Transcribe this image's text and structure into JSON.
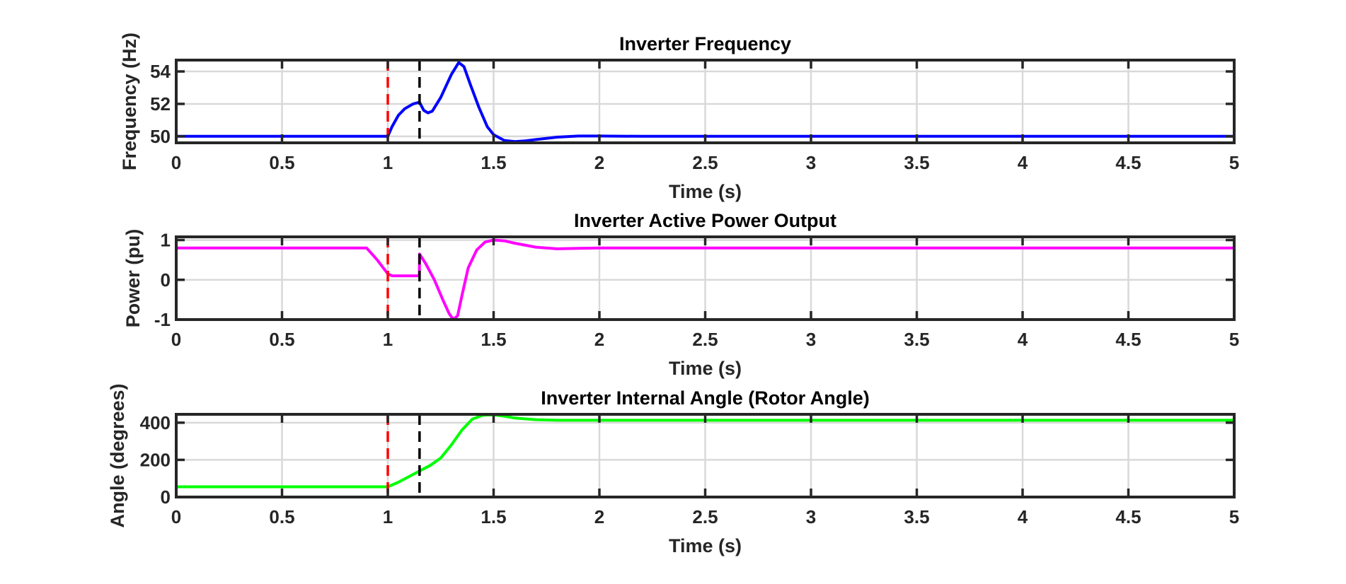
{
  "chart_data": [
    {
      "type": "line",
      "title": "Inverter Frequency",
      "xlabel": "Time (s)",
      "ylabel": "Frequency (Hz)",
      "xlim": [
        0,
        5
      ],
      "ylim": [
        49.6,
        54.7
      ],
      "xticks": [
        0,
        0.5,
        1,
        1.5,
        2,
        2.5,
        3,
        3.5,
        4,
        4.5,
        5
      ],
      "xtick_labels": [
        "0",
        "0.5",
        "1",
        "1.5",
        "2",
        "2.5",
        "3",
        "3.5",
        "4",
        "4.5",
        "5"
      ],
      "yticks": [
        50,
        52,
        54
      ],
      "ytick_labels": [
        "50",
        "52",
        "54"
      ],
      "grid": true,
      "vlines": [
        {
          "x": 1.0,
          "color": "#ff0000",
          "style": "dashed"
        },
        {
          "x": 1.15,
          "color": "#000000",
          "style": "dashed"
        }
      ],
      "series": [
        {
          "color": "#0000ff",
          "x": [
            0,
            0.5,
            1.0,
            1.02,
            1.05,
            1.08,
            1.12,
            1.15,
            1.17,
            1.19,
            1.21,
            1.25,
            1.3,
            1.335,
            1.36,
            1.39,
            1.43,
            1.47,
            1.5,
            1.55,
            1.6,
            1.65,
            1.7,
            1.8,
            1.9,
            2.0,
            2.2,
            2.5,
            3,
            4,
            5
          ],
          "y": [
            50.0,
            50.0,
            50.0,
            50.6,
            51.3,
            51.7,
            52.0,
            52.1,
            51.6,
            51.45,
            51.55,
            52.4,
            53.8,
            54.55,
            54.3,
            53.2,
            51.8,
            50.6,
            50.1,
            49.75,
            49.68,
            49.72,
            49.8,
            49.95,
            50.02,
            50.02,
            50.0,
            50.0,
            50.0,
            50.0,
            50.0
          ]
        }
      ]
    },
    {
      "type": "line",
      "title": "Inverter Active Power Output",
      "xlabel": "Time (s)",
      "ylabel": "Power (pu)",
      "xlim": [
        0,
        5
      ],
      "ylim": [
        -1.0,
        1.08
      ],
      "xticks": [
        0,
        0.5,
        1,
        1.5,
        2,
        2.5,
        3,
        3.5,
        4,
        4.5,
        5
      ],
      "xtick_labels": [
        "0",
        "0.5",
        "1",
        "1.5",
        "2",
        "2.5",
        "3",
        "3.5",
        "4",
        "4.5",
        "5"
      ],
      "yticks": [
        -1,
        0,
        1
      ],
      "ytick_labels": [
        "-1",
        "0",
        "1"
      ],
      "grid": true,
      "vlines": [
        {
          "x": 1.0,
          "color": "#ff0000",
          "style": "dashed"
        },
        {
          "x": 1.15,
          "color": "#000000",
          "style": "dashed"
        }
      ],
      "series": [
        {
          "color": "#ff00ff",
          "x": [
            0,
            0.5,
            0.9,
            0.95,
            1.0,
            1.02,
            1.05,
            1.1,
            1.149,
            1.15,
            1.18,
            1.22,
            1.26,
            1.29,
            1.31,
            1.33,
            1.35,
            1.38,
            1.42,
            1.46,
            1.5,
            1.55,
            1.6,
            1.7,
            1.8,
            1.9,
            2.0,
            2.5,
            3,
            4,
            5
          ],
          "y": [
            0.8,
            0.8,
            0.8,
            0.5,
            0.15,
            0.1,
            0.1,
            0.1,
            0.1,
            0.65,
            0.4,
            0.0,
            -0.5,
            -0.85,
            -1.0,
            -0.9,
            -0.4,
            0.3,
            0.75,
            0.95,
            1.0,
            0.98,
            0.92,
            0.82,
            0.78,
            0.79,
            0.8,
            0.8,
            0.8,
            0.8,
            0.8
          ]
        }
      ]
    },
    {
      "type": "line",
      "title": "Inverter Internal Angle (Rotor Angle)",
      "xlabel": "Time (s)",
      "ylabel": "Angle (degrees)",
      "xlim": [
        0,
        5
      ],
      "ylim": [
        0,
        445
      ],
      "xticks": [
        0,
        0.5,
        1,
        1.5,
        2,
        2.5,
        3,
        3.5,
        4,
        4.5,
        5
      ],
      "xtick_labels": [
        "0",
        "0.5",
        "1",
        "1.5",
        "2",
        "2.5",
        "3",
        "3.5",
        "4",
        "4.5",
        "5"
      ],
      "yticks": [
        0,
        200,
        400
      ],
      "ytick_labels": [
        "0",
        "200",
        "400"
      ],
      "grid": true,
      "vlines": [
        {
          "x": 1.0,
          "color": "#ff0000",
          "style": "dashed"
        },
        {
          "x": 1.15,
          "color": "#000000",
          "style": "dashed"
        }
      ],
      "series": [
        {
          "color": "#00ff00",
          "x": [
            0,
            0.5,
            1.0,
            1.05,
            1.1,
            1.15,
            1.2,
            1.25,
            1.3,
            1.35,
            1.4,
            1.45,
            1.5,
            1.55,
            1.6,
            1.7,
            1.8,
            2.0,
            3,
            4,
            5
          ],
          "y": [
            55,
            55,
            55,
            80,
            110,
            140,
            170,
            210,
            280,
            360,
            420,
            440,
            442,
            435,
            425,
            416,
            413,
            413,
            413,
            413,
            413
          ]
        }
      ]
    }
  ]
}
